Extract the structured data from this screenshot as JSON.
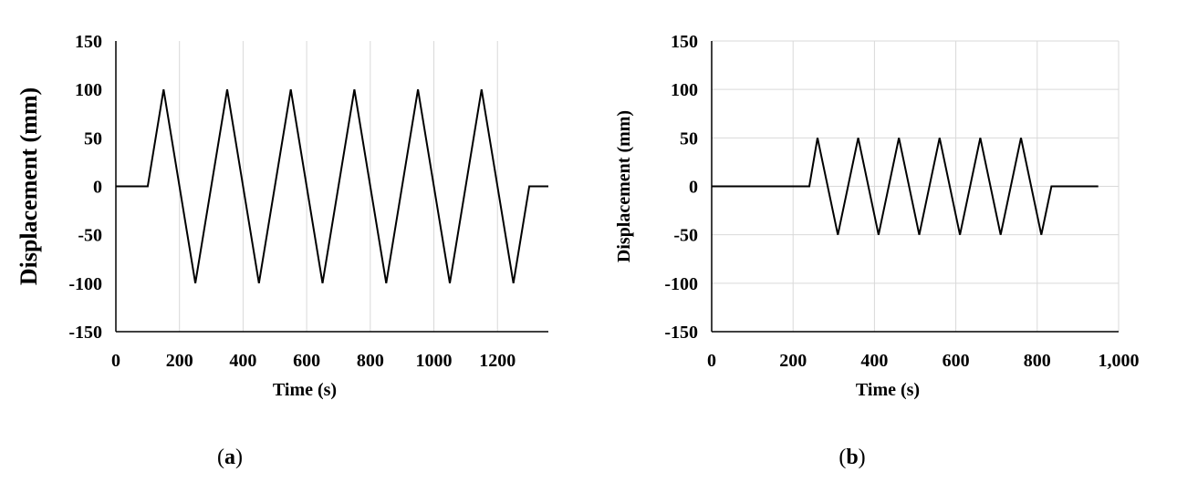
{
  "chart_data": [
    {
      "panel": "a",
      "type": "line",
      "xlabel": "Time (s)",
      "ylabel": "Displacement (mm)",
      "xlim": [
        0,
        1360
      ],
      "ylim": [
        -150,
        150
      ],
      "x_ticks": [
        0,
        200,
        400,
        600,
        800,
        1000,
        1200
      ],
      "x_tick_labels": [
        "0",
        "200",
        "400",
        "600",
        "800",
        "1000",
        "1200"
      ],
      "y_ticks": [
        150,
        100,
        50,
        0,
        -50,
        -100,
        -150
      ],
      "y_tick_labels": [
        "150",
        "100",
        "50",
        "0",
        "-50",
        "-100",
        "-150"
      ],
      "grid": "vertical",
      "series": [
        {
          "x": [
            0,
            100,
            150,
            250,
            350,
            450,
            550,
            650,
            750,
            850,
            950,
            1050,
            1150,
            1250,
            1300,
            1360
          ],
          "y": [
            0,
            0,
            100,
            -100,
            100,
            -100,
            100,
            -100,
            100,
            -100,
            100,
            -100,
            100,
            -100,
            0,
            0
          ]
        }
      ]
    },
    {
      "panel": "b",
      "type": "line",
      "xlabel": "Time (s)",
      "ylabel": "Displacement (mm)",
      "xlim": [
        0,
        1000
      ],
      "ylim": [
        -150,
        150
      ],
      "x_ticks": [
        0,
        200,
        400,
        600,
        800,
        1000
      ],
      "x_tick_labels": [
        "0",
        "200",
        "400",
        "600",
        "800",
        "1,000"
      ],
      "y_ticks": [
        150,
        100,
        50,
        0,
        -50,
        -100,
        -150
      ],
      "y_tick_labels": [
        "150",
        "100",
        "50",
        "0",
        "-50",
        "-100",
        "-150"
      ],
      "grid": "both",
      "series": [
        {
          "x": [
            0,
            240,
            260,
            310,
            360,
            410,
            460,
            510,
            560,
            610,
            660,
            710,
            760,
            810,
            835,
            950
          ],
          "y": [
            0,
            0,
            50,
            -50,
            50,
            -50,
            50,
            -50,
            50,
            -50,
            50,
            -50,
            50,
            -50,
            0,
            0
          ]
        }
      ]
    }
  ],
  "captions": [
    {
      "open": "(",
      "letter": "a",
      "close": ")"
    },
    {
      "open": "(",
      "letter": "b",
      "close": ")"
    }
  ]
}
